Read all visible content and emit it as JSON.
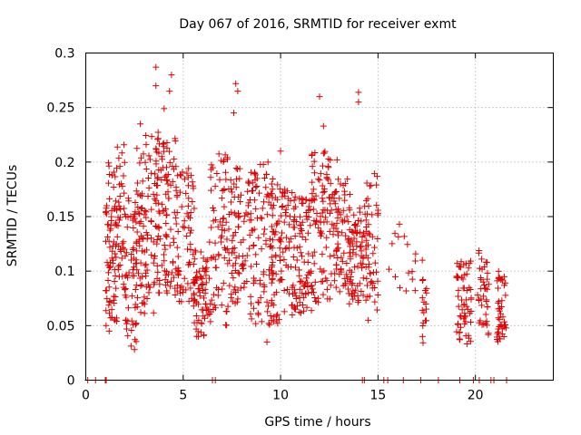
{
  "chart_data": {
    "type": "scatter",
    "title": "Day 067 of 2016, SRMTID for receiver exmt",
    "xlabel": "GPS time / hours",
    "ylabel": "SRMTID / TECUs",
    "xlim": [
      0,
      24
    ],
    "ylim": [
      0,
      0.3
    ],
    "xticks": [
      0,
      5,
      10,
      15,
      20
    ],
    "xtick_labels": [
      "0",
      "5",
      "10",
      "15",
      "20"
    ],
    "yticks": [
      0,
      0.05,
      0.1,
      0.15,
      0.2,
      0.25,
      0.3
    ],
    "ytick_labels": [
      "0",
      "0.05",
      "0.1",
      "0.15",
      "0.2",
      "0.25",
      "0.3"
    ],
    "grid": true,
    "marker": "+",
    "marker_color": "#e00000",
    "series": [
      {
        "name": "SRMTID",
        "clusters": [
          {
            "x": [
              1.0,
              1.6
            ],
            "y": [
              0.05,
              0.2
            ],
            "n": 70,
            "seed": 11
          },
          {
            "x": [
              1.5,
              2.0
            ],
            "y": [
              0.08,
              0.22
            ],
            "n": 45,
            "seed": 12
          },
          {
            "x": [
              2.0,
              2.6
            ],
            "y": [
              0.03,
              0.17
            ],
            "n": 55,
            "seed": 13
          },
          {
            "x": [
              2.5,
              3.2
            ],
            "y": [
              0.06,
              0.24
            ],
            "n": 55,
            "seed": 14
          },
          {
            "x": [
              3.0,
              3.8
            ],
            "y": [
              0.06,
              0.23
            ],
            "n": 55,
            "seed": 15
          },
          {
            "x": [
              3.5,
              4.2
            ],
            "y": [
              0.09,
              0.22
            ],
            "n": 45,
            "seed": 16
          },
          {
            "x": [
              4.0,
              4.7
            ],
            "y": [
              0.07,
              0.25
            ],
            "n": 50,
            "seed": 17
          },
          {
            "x": [
              4.6,
              5.6
            ],
            "y": [
              0.07,
              0.2
            ],
            "n": 70,
            "seed": 18
          },
          {
            "x": [
              5.5,
              6.3
            ],
            "y": [
              0.04,
              0.12
            ],
            "n": 70,
            "seed": 19
          },
          {
            "x": [
              6.3,
              7.3
            ],
            "y": [
              0.05,
              0.21
            ],
            "n": 75,
            "seed": 20
          },
          {
            "x": [
              7.3,
              8.4
            ],
            "y": [
              0.07,
              0.2
            ],
            "n": 80,
            "seed": 21
          },
          {
            "x": [
              8.4,
              9.6
            ],
            "y": [
              0.05,
              0.2
            ],
            "n": 90,
            "seed": 22
          },
          {
            "x": [
              9.5,
              10.6
            ],
            "y": [
              0.05,
              0.18
            ],
            "n": 95,
            "seed": 23
          },
          {
            "x": [
              10.6,
              11.6
            ],
            "y": [
              0.06,
              0.17
            ],
            "n": 95,
            "seed": 24
          },
          {
            "x": [
              11.6,
              12.6
            ],
            "y": [
              0.07,
              0.21
            ],
            "n": 90,
            "seed": 25
          },
          {
            "x": [
              12.6,
              13.6
            ],
            "y": [
              0.08,
              0.2
            ],
            "n": 80,
            "seed": 26
          },
          {
            "x": [
              13.5,
              14.4
            ],
            "y": [
              0.07,
              0.16
            ],
            "n": 70,
            "seed": 27
          },
          {
            "x": [
              14.3,
              15.0
            ],
            "y": [
              0.06,
              0.19
            ],
            "n": 50,
            "seed": 28
          },
          {
            "x": [
              15.5,
              17.0
            ],
            "y": [
              0.08,
              0.14
            ],
            "n": 15,
            "seed": 29
          },
          {
            "x": [
              17.2,
              17.5
            ],
            "y": [
              0.03,
              0.11
            ],
            "n": 18,
            "seed": 30
          },
          {
            "x": [
              19.0,
              19.8
            ],
            "y": [
              0.03,
              0.11
            ],
            "n": 60,
            "seed": 31
          },
          {
            "x": [
              20.1,
              20.7
            ],
            "y": [
              0.04,
              0.12
            ],
            "n": 40,
            "seed": 32
          },
          {
            "x": [
              21.1,
              21.6
            ],
            "y": [
              0.03,
              0.1
            ],
            "n": 45,
            "seed": 33
          }
        ],
        "outliers": [
          {
            "x": 3.6,
            "y": 0.287
          },
          {
            "x": 4.4,
            "y": 0.28
          },
          {
            "x": 4.3,
            "y": 0.265
          },
          {
            "x": 7.7,
            "y": 0.272
          },
          {
            "x": 7.8,
            "y": 0.265
          },
          {
            "x": 12.0,
            "y": 0.26
          },
          {
            "x": 14.0,
            "y": 0.264
          },
          {
            "x": 14.0,
            "y": 0.255
          },
          {
            "x": 3.6,
            "y": 0.27
          },
          {
            "x": 7.6,
            "y": 0.245
          },
          {
            "x": 2.8,
            "y": 0.235
          },
          {
            "x": 12.2,
            "y": 0.233
          },
          {
            "x": 10.0,
            "y": 0.21
          },
          {
            "x": 8.8,
            "y": 0.185
          },
          {
            "x": 12.9,
            "y": 0.202
          },
          {
            "x": 15.0,
            "y": 0.153
          },
          {
            "x": 16.1,
            "y": 0.143
          },
          {
            "x": 9.3,
            "y": 0.035
          },
          {
            "x": 14.5,
            "y": 0.055
          },
          {
            "x": 2.5,
            "y": 0.028
          },
          {
            "x": 1.2,
            "y": 0.045
          }
        ],
        "zero_points": [
          0.1,
          0.5,
          1.0,
          1.05,
          6.5,
          6.65,
          14.2,
          14.3,
          15.3,
          15.5,
          16.3,
          17.2,
          18.1,
          19.2,
          19.9,
          20.2,
          20.8,
          20.95,
          21.6
        ]
      }
    ]
  }
}
